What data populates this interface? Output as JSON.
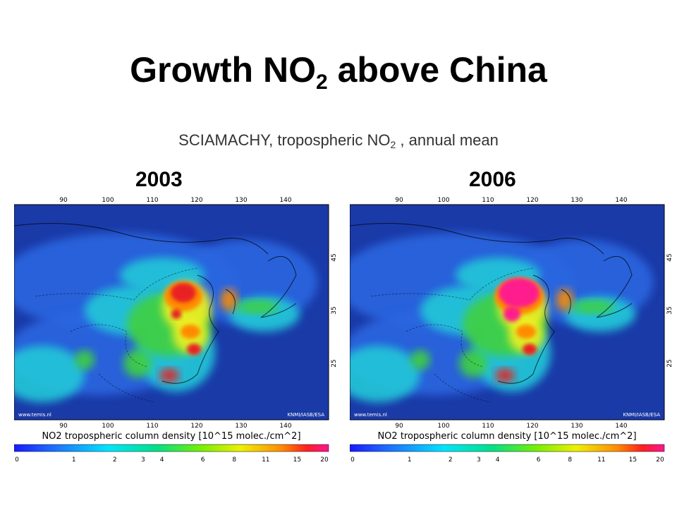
{
  "slide": {
    "title_main": "Growth NO",
    "title_sub": "2",
    "title_rest": " above China",
    "subtitle_main": "SCIAMACHY, tropospheric NO",
    "subtitle_sub": "2",
    "subtitle_rest": " , annual mean"
  },
  "panels": [
    {
      "year": "2003",
      "lon_ticks": [
        "90",
        "100",
        "110",
        "120",
        "130",
        "140"
      ],
      "lat_ticks": [
        "45",
        "35",
        "25"
      ],
      "credit_left": "www.temis.nl",
      "credit_right": "KNMI/IASB/ESA",
      "caption": "NO2 tropospheric column density [10^15 molec./cm^2]",
      "colorbar_labels": [
        "0",
        "1",
        "2",
        "3",
        "4",
        "6",
        "8",
        "11",
        "15",
        "20"
      ]
    },
    {
      "year": "2006",
      "lon_ticks": [
        "90",
        "100",
        "110",
        "120",
        "130",
        "140"
      ],
      "lat_ticks": [
        "45",
        "35",
        "25"
      ],
      "credit_left": "www.temis.nl",
      "credit_right": "KNMI/IASB/ESA",
      "caption": "NO2 tropospheric column density [10^15 molec./cm^2]",
      "colorbar_labels": [
        "0",
        "1",
        "2",
        "3",
        "4",
        "6",
        "8",
        "11",
        "15",
        "20"
      ]
    }
  ],
  "colors": {
    "background_ocean": "#1a3aa8",
    "low": "#2a66e0",
    "mid": "#20c8d8",
    "green": "#40d040",
    "yellow": "#f0f020",
    "orange": "#ff8c00",
    "red": "#e82020",
    "magenta": "#ff1a8c"
  }
}
